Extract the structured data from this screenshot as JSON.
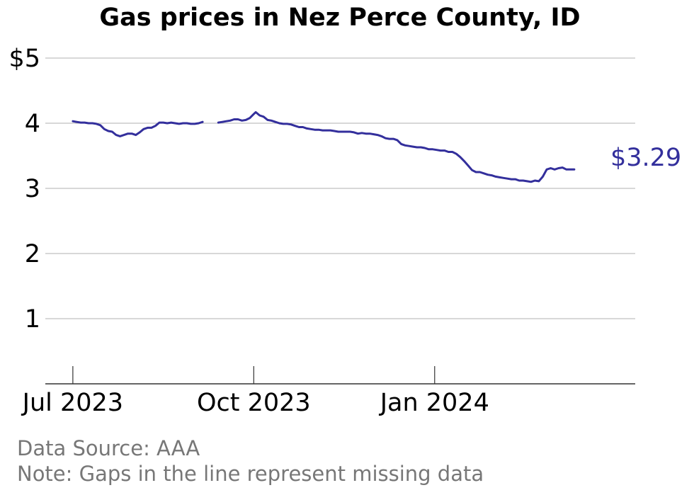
{
  "colors": {
    "line": "#332f9c",
    "grid": "#b0b0b0",
    "axis": "#333333",
    "note_text": "#777777"
  },
  "notes": {
    "source": "Data Source: AAA",
    "gaps": "Note: Gaps in the line represent missing data"
  },
  "chart_data": {
    "type": "line",
    "title": "Gas prices in Nez Perce County, ID",
    "xlabel": "",
    "ylabel": "",
    "ylim": [
      0,
      5
    ],
    "xlim": [
      "2023-06-17",
      "2024-04-12"
    ],
    "y_ticks": [
      {
        "value": 1,
        "label": "1"
      },
      {
        "value": 2,
        "label": "2"
      },
      {
        "value": 3,
        "label": "3"
      },
      {
        "value": 4,
        "label": "4"
      },
      {
        "value": 5,
        "label": "$5"
      }
    ],
    "x_ticks": [
      {
        "value": "2023-07-01",
        "label": "Jul 2023"
      },
      {
        "value": "2023-10-01",
        "label": "Oct 2023"
      },
      {
        "value": "2024-01-01",
        "label": "Jan 2024"
      }
    ],
    "grid": "horizontal",
    "end_label": "$3.29",
    "series": [
      {
        "segments": [
          [
            [
              "2023-07-01",
              4.03
            ],
            [
              "2023-07-03",
              4.02
            ],
            [
              "2023-07-05",
              4.01
            ],
            [
              "2023-07-07",
              4.01
            ],
            [
              "2023-07-09",
              4.0
            ],
            [
              "2023-07-11",
              4.0
            ],
            [
              "2023-07-13",
              3.99
            ],
            [
              "2023-07-15",
              3.97
            ],
            [
              "2023-07-17",
              3.91
            ],
            [
              "2023-07-19",
              3.88
            ],
            [
              "2023-07-21",
              3.87
            ],
            [
              "2023-07-23",
              3.82
            ],
            [
              "2023-07-25",
              3.8
            ],
            [
              "2023-07-27",
              3.82
            ],
            [
              "2023-07-29",
              3.84
            ],
            [
              "2023-07-31",
              3.84
            ],
            [
              "2023-08-02",
              3.82
            ],
            [
              "2023-08-04",
              3.86
            ],
            [
              "2023-08-06",
              3.91
            ],
            [
              "2023-08-08",
              3.93
            ],
            [
              "2023-08-10",
              3.93
            ],
            [
              "2023-08-12",
              3.96
            ],
            [
              "2023-08-14",
              4.01
            ],
            [
              "2023-08-16",
              4.01
            ],
            [
              "2023-08-18",
              4.0
            ],
            [
              "2023-08-20",
              4.01
            ],
            [
              "2023-08-22",
              4.0
            ],
            [
              "2023-08-24",
              3.99
            ],
            [
              "2023-08-26",
              4.0
            ],
            [
              "2023-08-28",
              4.0
            ],
            [
              "2023-08-30",
              3.99
            ],
            [
              "2023-09-01",
              3.99
            ],
            [
              "2023-09-03",
              4.0
            ],
            [
              "2023-09-05",
              4.02
            ]
          ],
          [
            [
              "2023-09-13",
              4.01
            ],
            [
              "2023-09-15",
              4.02
            ],
            [
              "2023-09-17",
              4.03
            ],
            [
              "2023-09-19",
              4.04
            ],
            [
              "2023-09-21",
              4.06
            ],
            [
              "2023-09-23",
              4.06
            ],
            [
              "2023-09-25",
              4.04
            ],
            [
              "2023-09-27",
              4.05
            ],
            [
              "2023-09-29",
              4.08
            ],
            [
              "2023-10-01",
              4.14
            ],
            [
              "2023-10-02",
              4.17
            ],
            [
              "2023-10-04",
              4.12
            ],
            [
              "2023-10-06",
              4.1
            ],
            [
              "2023-10-08",
              4.05
            ],
            [
              "2023-10-10",
              4.04
            ],
            [
              "2023-10-12",
              4.02
            ],
            [
              "2023-10-14",
              4.0
            ],
            [
              "2023-10-16",
              3.99
            ],
            [
              "2023-10-18",
              3.99
            ],
            [
              "2023-10-20",
              3.98
            ],
            [
              "2023-10-22",
              3.96
            ],
            [
              "2023-10-24",
              3.94
            ],
            [
              "2023-10-26",
              3.94
            ],
            [
              "2023-10-28",
              3.92
            ],
            [
              "2023-10-30",
              3.91
            ],
            [
              "2023-11-01",
              3.9
            ],
            [
              "2023-11-03",
              3.9
            ],
            [
              "2023-11-05",
              3.89
            ],
            [
              "2023-11-07",
              3.89
            ],
            [
              "2023-11-09",
              3.89
            ],
            [
              "2023-11-11",
              3.88
            ],
            [
              "2023-11-13",
              3.87
            ],
            [
              "2023-11-15",
              3.87
            ],
            [
              "2023-11-17",
              3.87
            ],
            [
              "2023-11-19",
              3.87
            ],
            [
              "2023-11-21",
              3.86
            ],
            [
              "2023-11-23",
              3.84
            ],
            [
              "2023-11-25",
              3.85
            ],
            [
              "2023-11-27",
              3.84
            ],
            [
              "2023-11-29",
              3.84
            ],
            [
              "2023-12-01",
              3.83
            ],
            [
              "2023-12-03",
              3.82
            ],
            [
              "2023-12-05",
              3.8
            ],
            [
              "2023-12-07",
              3.77
            ],
            [
              "2023-12-09",
              3.76
            ],
            [
              "2023-12-11",
              3.76
            ],
            [
              "2023-12-13",
              3.74
            ],
            [
              "2023-12-15",
              3.68
            ],
            [
              "2023-12-17",
              3.66
            ],
            [
              "2023-12-19",
              3.65
            ],
            [
              "2023-12-21",
              3.64
            ],
            [
              "2023-12-23",
              3.63
            ],
            [
              "2023-12-25",
              3.63
            ],
            [
              "2023-12-27",
              3.62
            ],
            [
              "2023-12-29",
              3.6
            ],
            [
              "2023-12-31",
              3.6
            ],
            [
              "2024-01-02",
              3.59
            ],
            [
              "2024-01-04",
              3.58
            ],
            [
              "2024-01-06",
              3.58
            ],
            [
              "2024-01-08",
              3.56
            ],
            [
              "2024-01-10",
              3.56
            ],
            [
              "2024-01-12",
              3.53
            ],
            [
              "2024-01-14",
              3.48
            ],
            [
              "2024-01-16",
              3.42
            ],
            [
              "2024-01-18",
              3.35
            ],
            [
              "2024-01-20",
              3.28
            ],
            [
              "2024-01-22",
              3.25
            ],
            [
              "2024-01-24",
              3.25
            ],
            [
              "2024-01-26",
              3.23
            ],
            [
              "2024-01-28",
              3.21
            ],
            [
              "2024-01-30",
              3.2
            ],
            [
              "2024-02-01",
              3.18
            ],
            [
              "2024-02-03",
              3.17
            ],
            [
              "2024-02-05",
              3.16
            ],
            [
              "2024-02-07",
              3.15
            ],
            [
              "2024-02-09",
              3.14
            ],
            [
              "2024-02-11",
              3.14
            ],
            [
              "2024-02-13",
              3.12
            ],
            [
              "2024-02-15",
              3.12
            ],
            [
              "2024-02-17",
              3.11
            ],
            [
              "2024-02-19",
              3.1
            ],
            [
              "2024-02-21",
              3.12
            ],
            [
              "2024-02-23",
              3.11
            ],
            [
              "2024-02-25",
              3.18
            ],
            [
              "2024-02-27",
              3.29
            ],
            [
              "2024-02-29",
              3.31
            ],
            [
              "2024-03-02",
              3.29
            ],
            [
              "2024-03-04",
              3.31
            ],
            [
              "2024-03-06",
              3.32
            ],
            [
              "2024-03-08",
              3.29
            ],
            [
              "2024-03-10",
              3.29
            ],
            [
              "2024-03-12",
              3.29
            ]
          ]
        ]
      }
    ]
  }
}
